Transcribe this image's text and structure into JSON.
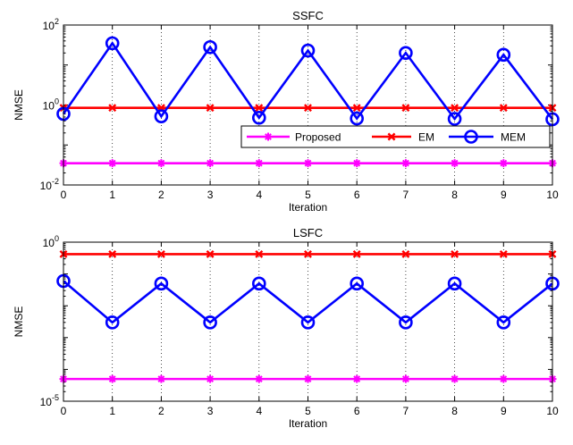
{
  "chart_data": [
    {
      "type": "line",
      "title": "SSFC",
      "xlabel": "Iteration",
      "ylabel": "NMSE",
      "yscale": "log",
      "xlim": [
        0,
        10
      ],
      "ylim": [
        0.01,
        100
      ],
      "xticks": [
        "0",
        "1",
        "2",
        "3",
        "4",
        "5",
        "6",
        "7",
        "8",
        "9",
        "10"
      ],
      "yticks": [
        {
          "base": "10",
          "exp": "-2"
        },
        {
          "base": "10",
          "exp": "0"
        },
        {
          "base": "10",
          "exp": "2"
        }
      ],
      "grid_x": "dotted",
      "legend": {
        "placement": "right",
        "orientation": "horizontal"
      },
      "x": [
        0,
        1,
        2,
        3,
        4,
        5,
        6,
        7,
        8,
        9,
        10
      ],
      "series": [
        {
          "name": "Proposed",
          "color": "#ff00ff",
          "marker": "asterisk",
          "values": [
            0.035,
            0.035,
            0.035,
            0.035,
            0.035,
            0.035,
            0.035,
            0.035,
            0.035,
            0.035,
            0.035
          ]
        },
        {
          "name": "EM",
          "color": "#ff0000",
          "marker": "x",
          "values": [
            0.85,
            0.85,
            0.85,
            0.85,
            0.85,
            0.85,
            0.85,
            0.85,
            0.85,
            0.85,
            0.85
          ]
        },
        {
          "name": "MEM",
          "color": "#0000ff",
          "marker": "circle",
          "values": [
            0.6,
            35,
            0.52,
            28,
            0.48,
            23,
            0.46,
            20,
            0.45,
            18,
            0.44
          ]
        }
      ]
    },
    {
      "type": "line",
      "title": "LSFC",
      "xlabel": "Iteration",
      "ylabel": "NMSE",
      "yscale": "log",
      "xlim": [
        0,
        10
      ],
      "ylim": [
        1e-05,
        1
      ],
      "xticks": [
        "0",
        "1",
        "2",
        "3",
        "4",
        "5",
        "6",
        "7",
        "8",
        "9",
        "10"
      ],
      "yticks": [
        {
          "base": "10",
          "exp": "-5"
        },
        {
          "base": "10",
          "exp": "0"
        }
      ],
      "grid_x": "dotted",
      "x": [
        0,
        1,
        2,
        3,
        4,
        5,
        6,
        7,
        8,
        9,
        10
      ],
      "series": [
        {
          "name": "Proposed",
          "color": "#ff00ff",
          "marker": "asterisk",
          "values": [
            5e-05,
            5e-05,
            5e-05,
            5e-05,
            5e-05,
            5e-05,
            5e-05,
            5e-05,
            5e-05,
            5e-05,
            5e-05
          ]
        },
        {
          "name": "EM",
          "color": "#ff0000",
          "marker": "x",
          "values": [
            0.42,
            0.42,
            0.42,
            0.42,
            0.42,
            0.42,
            0.42,
            0.42,
            0.42,
            0.42,
            0.42
          ]
        },
        {
          "name": "MEM",
          "color": "#0000ff",
          "marker": "circle",
          "values": [
            0.06,
            0.003,
            0.05,
            0.003,
            0.05,
            0.003,
            0.05,
            0.003,
            0.05,
            0.003,
            0.05
          ]
        }
      ]
    }
  ]
}
